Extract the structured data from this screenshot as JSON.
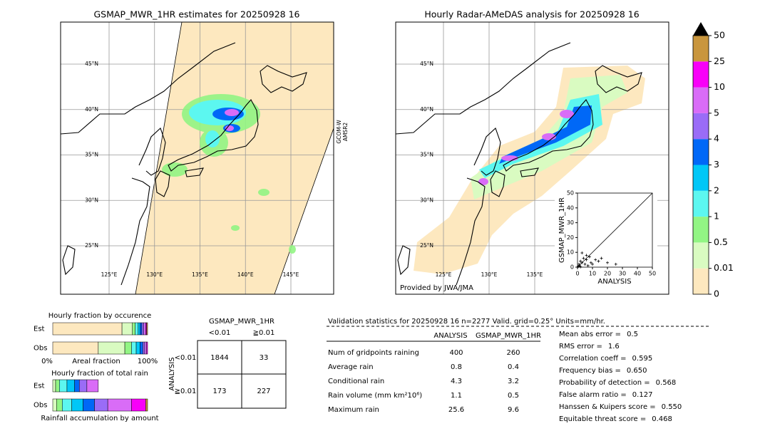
{
  "left_map": {
    "title": "GSMAP_MWR_1HR estimates for 20250928 16",
    "swath_label": [
      "GCOM-W",
      "AMSR2"
    ],
    "lat_lines": [
      {
        "value": 45,
        "label": "45°N"
      },
      {
        "value": 40,
        "label": "40°N"
      },
      {
        "value": 35,
        "label": "35°N"
      },
      {
        "value": 30,
        "label": "30°N"
      },
      {
        "value": 25,
        "label": "25°N"
      }
    ],
    "lon_lines": [
      {
        "value": 125,
        "label": "125°E"
      },
      {
        "value": 130,
        "label": "130°E"
      },
      {
        "value": 135,
        "label": "135°E"
      },
      {
        "value": 140,
        "label": "140°E"
      },
      {
        "value": 145,
        "label": "145°E"
      }
    ]
  },
  "right_map": {
    "title": "Hourly Radar-AMeDAS analysis for 20250928 16",
    "credit": "Provided by JWA/JMA",
    "lat_lines": [
      {
        "value": 45,
        "label": "45°N"
      },
      {
        "value": 40,
        "label": "40°N"
      },
      {
        "value": 35,
        "label": "35°N"
      },
      {
        "value": 30,
        "label": "30°N"
      },
      {
        "value": 25,
        "label": "25°N"
      }
    ],
    "lon_lines": [
      {
        "value": 125,
        "label": "125°E"
      },
      {
        "value": 130,
        "label": "130°E"
      },
      {
        "value": 135,
        "label": "135°E"
      }
    ]
  },
  "scatter": {
    "xlabel": "ANALYSIS",
    "ylabel": "GSMAP_MWR_1HR",
    "xlim": [
      0,
      50
    ],
    "ylim": [
      0,
      50
    ],
    "xticks": [
      0,
      10,
      20,
      30,
      40,
      50
    ],
    "yticks": [
      0,
      10,
      20,
      30,
      40,
      50
    ],
    "x": [
      0.5,
      1,
      1.5,
      2,
      3,
      4,
      5,
      6,
      7,
      8,
      9,
      10,
      12,
      14,
      16,
      20,
      25.6,
      3,
      6,
      2
    ],
    "y": [
      0.5,
      2,
      1,
      4,
      3,
      6,
      2,
      5,
      1,
      7,
      3,
      2,
      5,
      4,
      6,
      3,
      2,
      9.6,
      8,
      0.2
    ]
  },
  "colorbar": {
    "levels": [
      0,
      0.01,
      0.5,
      1,
      2,
      3,
      4,
      5,
      10,
      25,
      50
    ],
    "colors": [
      "#fde8bf",
      "#d9fbc1",
      "#92f584",
      "#5cf7f0",
      "#00c7f7",
      "#0068f7",
      "#9a6cf7",
      "#d96cf7",
      "#f800f8",
      "#c9963e"
    ],
    "over_color": "#000000"
  },
  "occurrence": {
    "title": "Hourly fraction by occurence",
    "xlabel": "Areal fraction",
    "left": "0%",
    "right": "100%",
    "rows": [
      {
        "label": "Est",
        "values": [
          73,
          11,
          3,
          3,
          2,
          2,
          2,
          2,
          1,
          1
        ]
      },
      {
        "label": "Obs",
        "values": [
          48,
          28,
          7,
          5,
          4,
          3,
          2,
          2,
          1,
          0
        ]
      }
    ]
  },
  "total_rain": {
    "title": "Hourly fraction of total rain",
    "xlabel": "Rainfall accumulation by amount",
    "rows": [
      {
        "label": "Est",
        "values": [
          0,
          3,
          4,
          8,
          8,
          5,
          8,
          12,
          0,
          0
        ]
      },
      {
        "label": "Obs",
        "values": [
          0,
          4,
          6,
          10,
          12,
          12,
          14,
          25,
          15,
          2
        ]
      }
    ]
  },
  "contingency": {
    "title": "GSMAP_MWR_1HR",
    "col_labels": [
      "<0.01",
      "≧0.01"
    ],
    "row_title": "ANALYSIS",
    "row_labels": [
      "<0.01",
      "≧0.01"
    ],
    "cells": [
      [
        1844,
        33
      ],
      [
        173,
        227
      ]
    ]
  },
  "validation": {
    "header": "Validation statistics for 20250928 16  n=2277 Valid. grid=0.25° Units=mm/hr.",
    "columns": [
      "ANALYSIS",
      "GSMAP_MWR_1HR"
    ],
    "rows": [
      {
        "label": "Num of gridpoints raining",
        "values": [
          400,
          260
        ]
      },
      {
        "label": "Average rain",
        "values": [
          0.8,
          0.4
        ]
      },
      {
        "label": "Conditional rain",
        "values": [
          4.3,
          3.2
        ]
      },
      {
        "label": "Rain volume (mm km²10⁶)",
        "values": [
          1.1,
          0.5
        ]
      },
      {
        "label": "Maximum rain",
        "values": [
          25.6,
          9.6
        ]
      }
    ],
    "scores": [
      {
        "label": "Mean abs error =",
        "value": "0.5"
      },
      {
        "label": "RMS error =",
        "value": "1.6"
      },
      {
        "label": "Correlation coeff =",
        "value": "0.595"
      },
      {
        "label": "Frequency bias =",
        "value": "0.650"
      },
      {
        "label": "Probability of detection =",
        "value": "0.568"
      },
      {
        "label": "False alarm ratio =",
        "value": "0.127"
      },
      {
        "label": "Hanssen & Kuipers score =",
        "value": "0.550"
      },
      {
        "label": "Equitable threat score =",
        "value": "0.468"
      }
    ]
  }
}
